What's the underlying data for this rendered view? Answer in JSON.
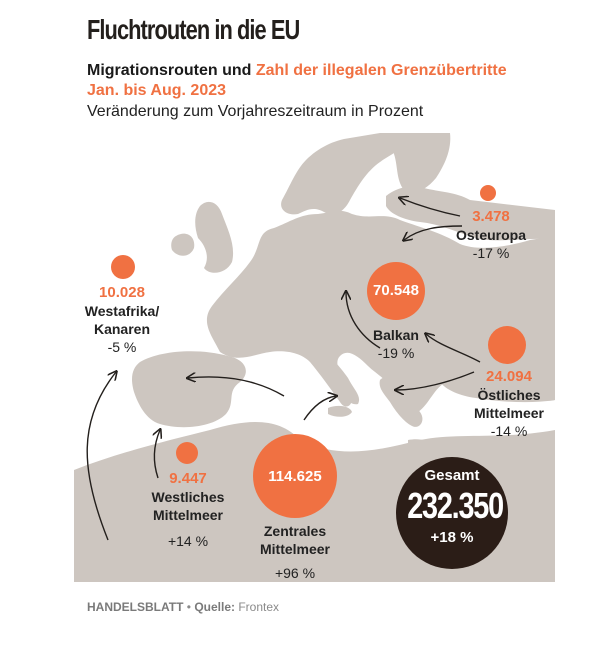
{
  "header": {
    "title": "Fluchtrouten in die EU",
    "subtitle_black": "Migrationsrouten und ",
    "subtitle_orange": "Zahl der illegalen Grenzübertritte",
    "subtitle_line2": "Jan. bis Aug. 2023",
    "subtitle_line3": "Veränderung zum Vorjahreszeitraum in Prozent"
  },
  "colors": {
    "accent": "#f07142",
    "land": "#cdc6c0",
    "dark": "#2b1d17"
  },
  "routes": [
    {
      "id": "osteuropa",
      "value": "3.478",
      "name": "Osteuropa",
      "change": "-17 %"
    },
    {
      "id": "balkan",
      "value": "70.548",
      "name": "Balkan",
      "change": "-19 %"
    },
    {
      "id": "westafrika",
      "value": "10.028",
      "name_line1": "Westafrika/",
      "name_line2": "Kanaren",
      "change": "-5 %"
    },
    {
      "id": "oestliches",
      "value": "24.094",
      "name_line1": "Östliches",
      "name_line2": "Mittelmeer",
      "change": "-14 %"
    },
    {
      "id": "westliches",
      "value": "9.447",
      "name_line1": "Westliches",
      "name_line2": "Mittelmeer",
      "change": "+14 %"
    },
    {
      "id": "zentrales",
      "value": "114.625",
      "name_line1": "Zentrales",
      "name_line2": "Mittelmeer",
      "change": "+96 %"
    }
  ],
  "total": {
    "label": "Gesamt",
    "value": "232.350",
    "change": "+18 %"
  },
  "footer": {
    "source_org": "HANDELSBLATT",
    "separator": " • ",
    "source_label": "Quelle:",
    "source_name": " Frontex"
  }
}
